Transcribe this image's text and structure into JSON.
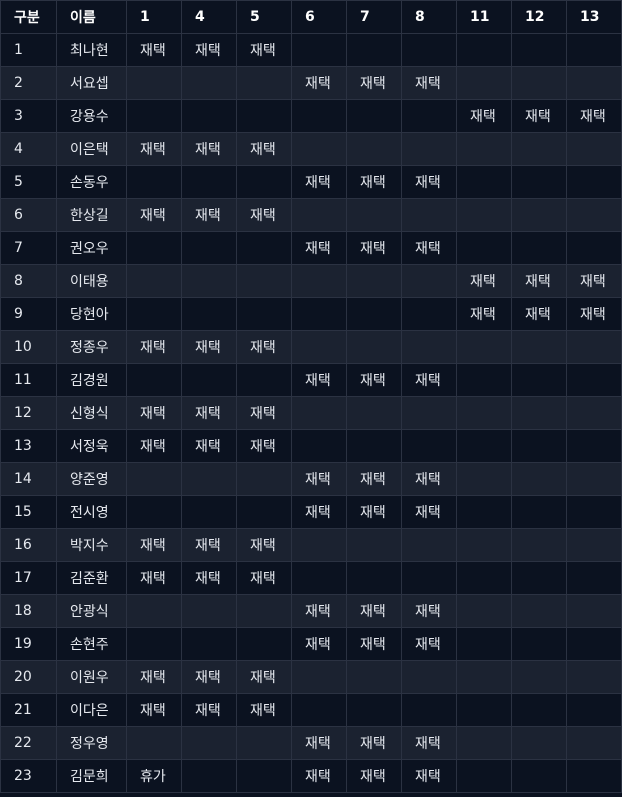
{
  "table": {
    "headers": [
      "구분",
      "이름",
      "1",
      "4",
      "5",
      "6",
      "7",
      "8",
      "11",
      "12",
      "13"
    ],
    "rows": [
      [
        "1",
        "최나현",
        "재택",
        "재택",
        "재택",
        "",
        "",
        "",
        "",
        "",
        ""
      ],
      [
        "2",
        "서요셉",
        "",
        "",
        "",
        "재택",
        "재택",
        "재택",
        "",
        "",
        ""
      ],
      [
        "3",
        "강용수",
        "",
        "",
        "",
        "",
        "",
        "",
        "재택",
        "재택",
        "재택"
      ],
      [
        "4",
        "이은택",
        "재택",
        "재택",
        "재택",
        "",
        "",
        "",
        "",
        "",
        ""
      ],
      [
        "5",
        "손동우",
        "",
        "",
        "",
        "재택",
        "재택",
        "재택",
        "",
        "",
        ""
      ],
      [
        "6",
        "한상길",
        "재택",
        "재택",
        "재택",
        "",
        "",
        "",
        "",
        "",
        ""
      ],
      [
        "7",
        "권오우",
        "",
        "",
        "",
        "재택",
        "재택",
        "재택",
        "",
        "",
        ""
      ],
      [
        "8",
        "이태용",
        "",
        "",
        "",
        "",
        "",
        "",
        "재택",
        "재택",
        "재택"
      ],
      [
        "9",
        "당현아",
        "",
        "",
        "",
        "",
        "",
        "",
        "재택",
        "재택",
        "재택"
      ],
      [
        "10",
        "정종우",
        "재택",
        "재택",
        "재택",
        "",
        "",
        "",
        "",
        "",
        ""
      ],
      [
        "11",
        "김경원",
        "",
        "",
        "",
        "재택",
        "재택",
        "재택",
        "",
        "",
        ""
      ],
      [
        "12",
        "신형식",
        "재택",
        "재택",
        "재택",
        "",
        "",
        "",
        "",
        "",
        ""
      ],
      [
        "13",
        "서정욱",
        "재택",
        "재택",
        "재택",
        "",
        "",
        "",
        "",
        "",
        ""
      ],
      [
        "14",
        "양준영",
        "",
        "",
        "",
        "재택",
        "재택",
        "재택",
        "",
        "",
        ""
      ],
      [
        "15",
        "전시영",
        "",
        "",
        "",
        "재택",
        "재택",
        "재택",
        "",
        "",
        ""
      ],
      [
        "16",
        "박지수",
        "재택",
        "재택",
        "재택",
        "",
        "",
        "",
        "",
        "",
        ""
      ],
      [
        "17",
        "김준환",
        "재택",
        "재택",
        "재택",
        "",
        "",
        "",
        "",
        "",
        ""
      ],
      [
        "18",
        "안광식",
        "",
        "",
        "",
        "재택",
        "재택",
        "재택",
        "",
        "",
        ""
      ],
      [
        "19",
        "손현주",
        "",
        "",
        "",
        "재택",
        "재택",
        "재택",
        "",
        "",
        ""
      ],
      [
        "20",
        "이원우",
        "재택",
        "재택",
        "재택",
        "",
        "",
        "",
        "",
        "",
        ""
      ],
      [
        "21",
        "이다은",
        "재택",
        "재택",
        "재택",
        "",
        "",
        "",
        "",
        "",
        ""
      ],
      [
        "22",
        "정우영",
        "",
        "",
        "",
        "재택",
        "재택",
        "재택",
        "",
        "",
        ""
      ],
      [
        "23",
        "김문희",
        "휴가",
        "",
        "",
        "재택",
        "재택",
        "재택",
        "",
        "",
        ""
      ]
    ]
  }
}
